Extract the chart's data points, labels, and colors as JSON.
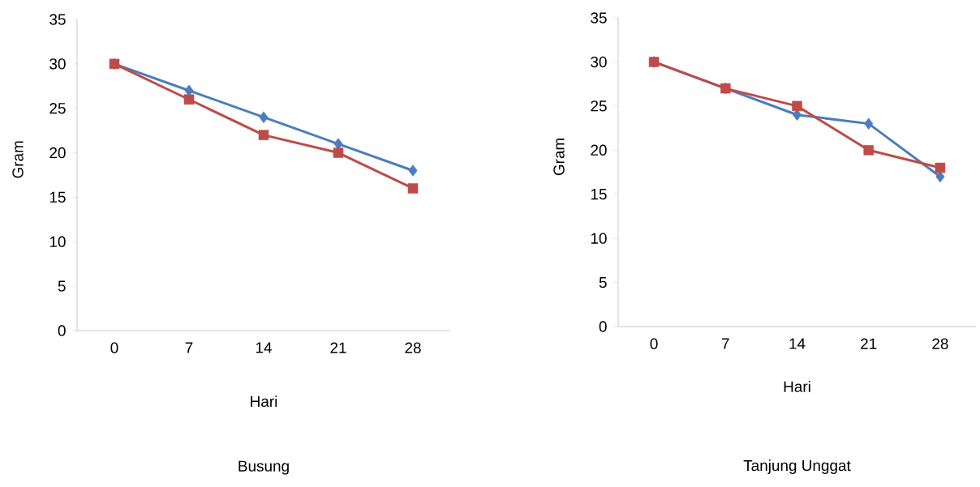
{
  "chart_data": [
    {
      "type": "line",
      "title": "Busung",
      "xlabel": "Hari",
      "ylabel": "Gram",
      "categories": [
        "0",
        "7",
        "14",
        "21",
        "28"
      ],
      "ylim": [
        0,
        35
      ],
      "yticks": [
        0,
        5,
        10,
        15,
        20,
        25,
        30,
        35
      ],
      "series": [
        {
          "color": "#4a7ebb",
          "marker": "diamond",
          "values": [
            30,
            27,
            24,
            21,
            18
          ]
        },
        {
          "color": "#be4b48",
          "marker": "square",
          "values": [
            30,
            26,
            22,
            20,
            16
          ]
        }
      ]
    },
    {
      "type": "line",
      "title": "Tanjung Unggat",
      "xlabel": "Hari",
      "ylabel": "Gram",
      "categories": [
        "0",
        "7",
        "14",
        "21",
        "28"
      ],
      "ylim": [
        0,
        35
      ],
      "yticks": [
        0,
        5,
        10,
        15,
        20,
        25,
        30,
        35
      ],
      "series": [
        {
          "color": "#4a7ebb",
          "marker": "diamond",
          "values": [
            30,
            27,
            24,
            23,
            17
          ]
        },
        {
          "color": "#be4b48",
          "marker": "square",
          "values": [
            30,
            27,
            25,
            20,
            18
          ]
        }
      ]
    }
  ]
}
